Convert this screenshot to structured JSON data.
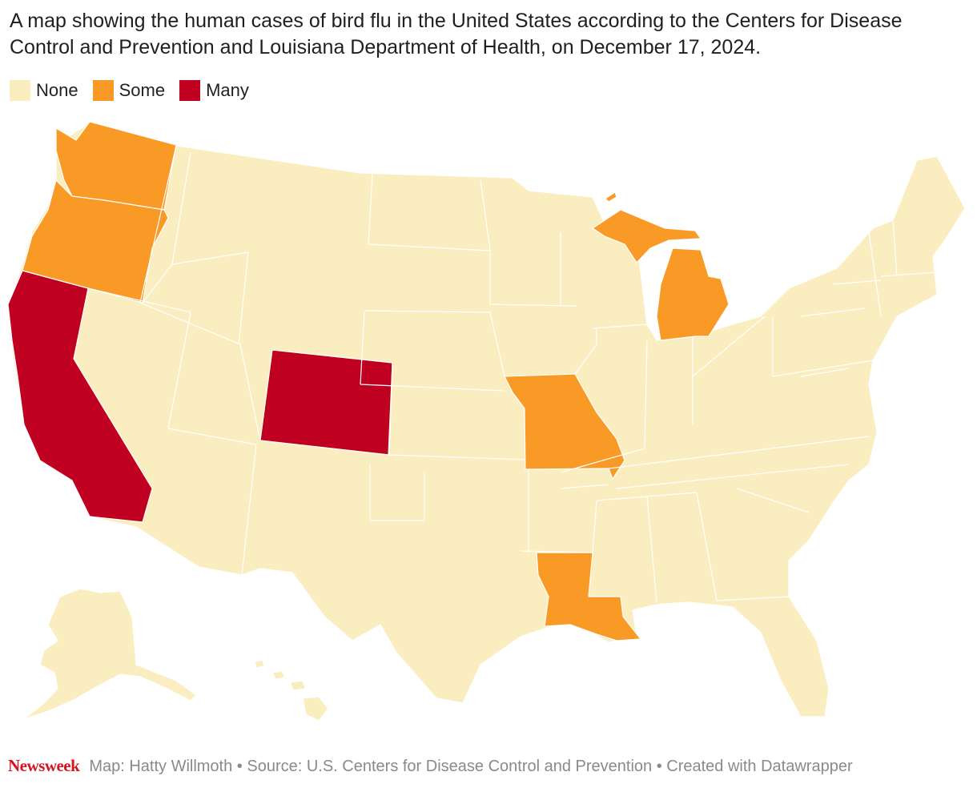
{
  "title": "A map showing the human cases of bird flu in the United States according to the Centers for Disease Control and Prevention and Louisiana Department of Health, on December 17, 2024.",
  "legend": [
    {
      "label": "None",
      "color": "#faeec0"
    },
    {
      "label": "Some",
      "color": "#f99a27"
    },
    {
      "label": "Many",
      "color": "#bf0021"
    }
  ],
  "categories": {
    "none": "#faeec0",
    "some": "#f99a27",
    "many": "#bf0021"
  },
  "states": {
    "some": [
      "Washington",
      "Oregon",
      "Michigan",
      "Missouri",
      "Louisiana"
    ],
    "many": [
      "California",
      "Colorado"
    ]
  },
  "footer": {
    "brand": "Newsweek",
    "credit": "Map: Hatty Willmoth • Source: U.S. Centers for Disease Control and Prevention • Created with Datawrapper"
  }
}
